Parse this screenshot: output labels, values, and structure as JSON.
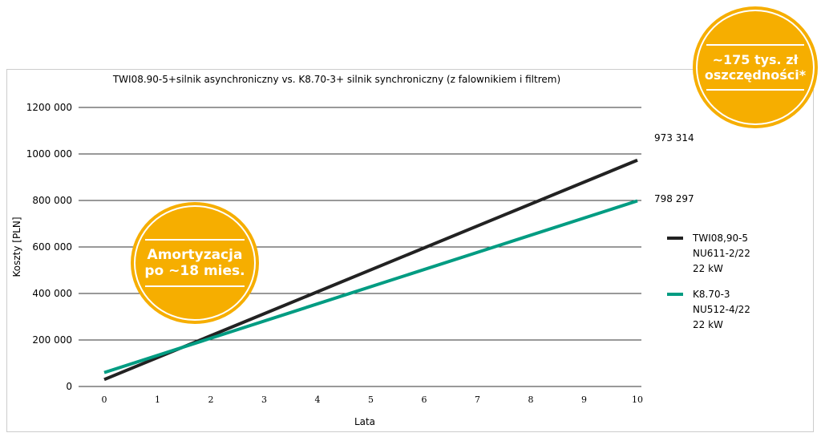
{
  "chart_data": {
    "type": "line",
    "title": "TWI08.90-5+silnik asynchroniczny vs. K8.70-3+ silnik synchroniczny (z falownikiem i filtrem)",
    "xlabel": "Lata",
    "ylabel": "Koszty [PLN]",
    "x": [
      0,
      1,
      2,
      3,
      4,
      5,
      6,
      7,
      8,
      9,
      10
    ],
    "xlim": [
      0,
      10
    ],
    "ylim": [
      0,
      1200000
    ],
    "yticks": [
      "0",
      "200 000",
      "400 000",
      "600 000",
      "800 000",
      "1000 000",
      "1200 000"
    ],
    "ytick_values": [
      0,
      200000,
      400000,
      600000,
      800000,
      1000000,
      1200000
    ],
    "xticks": [
      "0",
      "1",
      "2",
      "3",
      "4",
      "5",
      "6",
      "7",
      "8",
      "9",
      "10"
    ],
    "grid": true,
    "legend_position": "right",
    "series": [
      {
        "name": "TWI08,90-5",
        "lines": [
          "TWI08,90-5",
          "NU611-2/22",
          "22 kW"
        ],
        "color": "#222222",
        "start": 30000,
        "end": 973314,
        "end_label": "973 314"
      },
      {
        "name": "K8.70-3",
        "lines": [
          "K8.70-3",
          "NU512-4/22",
          "22 kW"
        ],
        "color": "#009c82",
        "start": 60000,
        "end": 798297,
        "end_label": "798 297"
      }
    ]
  },
  "badges": {
    "savings": [
      "~175 tys. zł",
      "oszczędności*"
    ],
    "payback": [
      "Amortyzacja",
      "po ~18 mies."
    ]
  },
  "colors": {
    "badge": "#f6ae00"
  }
}
